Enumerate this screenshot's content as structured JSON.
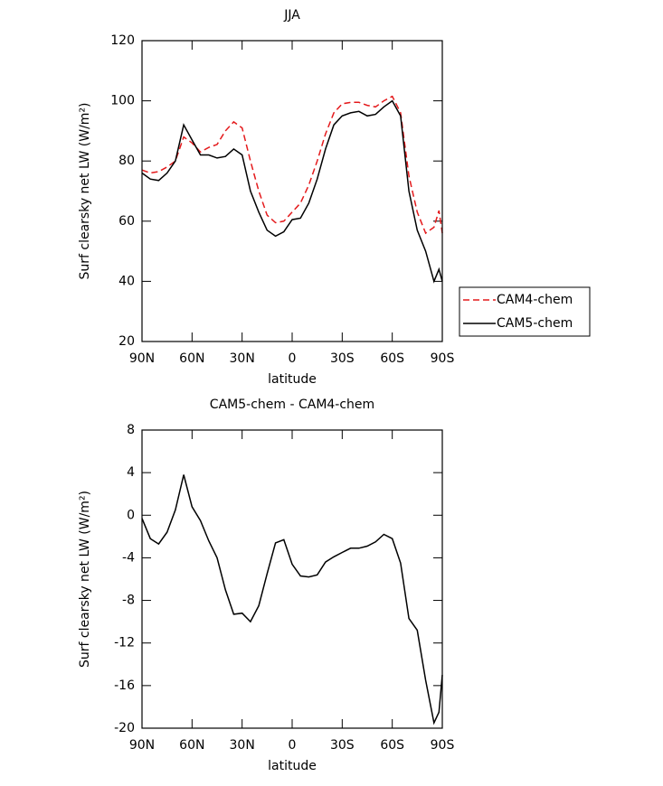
{
  "chart_data": [
    {
      "type": "line",
      "title": "JJA",
      "xlabel": "latitude",
      "ylabel": "Surf clearsky net LW (W/m²)",
      "x": [
        90,
        85,
        80,
        75,
        70,
        65,
        60,
        55,
        50,
        45,
        40,
        35,
        30,
        25,
        20,
        15,
        10,
        5,
        0,
        -5,
        -10,
        -15,
        -20,
        -25,
        -30,
        -35,
        -40,
        -45,
        -50,
        -55,
        -60,
        -65,
        -70,
        -75,
        -80,
        -85,
        -88,
        -90
      ],
      "series": [
        {
          "name": "CAM4-chem",
          "color": "#e41a1c",
          "linestyle": "dashed",
          "values": [
            77,
            76,
            76.5,
            78,
            80,
            88,
            86,
            83,
            84.5,
            85.5,
            90,
            93,
            91,
            80,
            70,
            62,
            59.5,
            60,
            63,
            66,
            72,
            80,
            89,
            96,
            99,
            99.5,
            99.5,
            98.5,
            98,
            100,
            101.5,
            96,
            75,
            63,
            56,
            58,
            63.5,
            56
          ]
        },
        {
          "name": "CAM5-chem",
          "color": "#000000",
          "linestyle": "solid",
          "values": [
            76,
            74,
            73.5,
            76,
            80,
            92,
            87,
            82,
            82,
            81,
            81.5,
            84,
            82,
            70,
            63,
            57,
            55,
            56.5,
            60.5,
            61,
            66,
            74,
            84,
            92,
            95,
            96,
            96.5,
            95,
            95.5,
            98,
            100,
            95,
            70,
            57,
            50,
            40,
            44,
            40
          ]
        }
      ],
      "xlim": [
        90,
        -90
      ],
      "xticks": [
        {
          "value": 90,
          "label": "90N"
        },
        {
          "value": 60,
          "label": "60N"
        },
        {
          "value": 30,
          "label": "30N"
        },
        0,
        {
          "value": -30,
          "label": "30S"
        },
        {
          "value": -60,
          "label": "60S"
        },
        {
          "value": -90,
          "label": "90S"
        }
      ],
      "ylim": [
        20,
        120
      ],
      "yticks": [
        20,
        40,
        60,
        80,
        100,
        120
      ],
      "legend": "right"
    },
    {
      "type": "line",
      "title": "CAM5-chem - CAM4-chem",
      "xlabel": "latitude",
      "ylabel": "Surf clearsky net LW (W/m²)",
      "x": [
        90,
        85,
        80,
        75,
        70,
        65,
        60,
        55,
        50,
        45,
        40,
        35,
        30,
        25,
        20,
        15,
        10,
        5,
        0,
        -5,
        -10,
        -15,
        -20,
        -25,
        -30,
        -35,
        -40,
        -45,
        -50,
        -55,
        -60,
        -65,
        -70,
        -75,
        -80,
        -85,
        -88,
        -90
      ],
      "series": [
        {
          "color": "#000000",
          "linestyle": "solid",
          "values": [
            -0.3,
            -2.2,
            -2.7,
            -1.6,
            0.5,
            3.8,
            0.8,
            -0.5,
            -2.4,
            -4,
            -7,
            -9.3,
            -9.2,
            -10,
            -8.5,
            -5.5,
            -2.6,
            -2.3,
            -4.6,
            -5.7,
            -5.8,
            -5.6,
            -4.4,
            -3.9,
            -3.5,
            -3.1,
            -3.1,
            -2.9,
            -2.5,
            -1.8,
            -2.2,
            -4.5,
            -9.7,
            -10.8,
            -15.5,
            -19.5,
            -18.5,
            -15
          ]
        }
      ],
      "xlim": [
        90,
        -90
      ],
      "xticks": [
        {
          "value": 90,
          "label": "90N"
        },
        {
          "value": 60,
          "label": "60N"
        },
        {
          "value": 30,
          "label": "30N"
        },
        0,
        {
          "value": -30,
          "label": "30S"
        },
        {
          "value": -60,
          "label": "60S"
        },
        {
          "value": -90,
          "label": "90S"
        }
      ],
      "ylim": [
        -20,
        8
      ],
      "yticks": [
        -20,
        -16,
        -12,
        -8,
        -4,
        0,
        4,
        8
      ]
    }
  ]
}
